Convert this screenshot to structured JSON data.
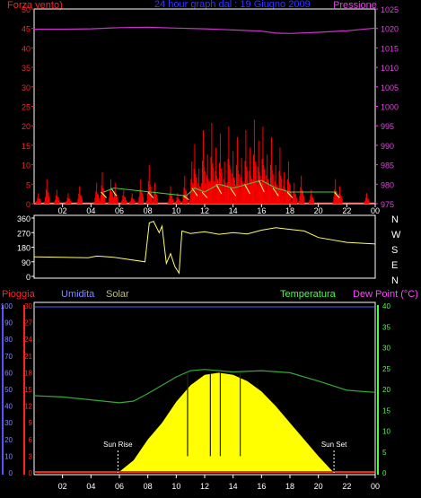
{
  "header": {
    "left_label": "Forza vento)",
    "center_label": "24 hour graph dal : 19 Giugno 2009",
    "right_label": "Pressione"
  },
  "hour_ticks": [
    "02",
    "04",
    "06",
    "08",
    "10",
    "12",
    "14",
    "16",
    "18",
    "20",
    "22",
    "00"
  ],
  "colors": {
    "background": "#000000",
    "frame": "#ffffff",
    "wind": "#ff0000",
    "gust": "#ffff66",
    "wind_avg": "#44cc44",
    "pressure": "#cc33cc",
    "direction": "#ffff66",
    "solar": "#ffff00",
    "humidity": "#5555ff",
    "temperature": "#33aa33",
    "dewpoint": "#ff2200",
    "rain": "#ff0000",
    "text_white": "#ffffff",
    "humidity_label": "#8888ff",
    "solar_label": "#bbbb88",
    "temperature_label": "#44ff44",
    "dewpoint_label": "#ff44ff",
    "rain_label": "#ff2222"
  },
  "chart_data": [
    {
      "type": "bar",
      "title": "24 hour graph dal : 19 Giugno 2009",
      "left_axis_label": "Forza vento)",
      "right_axis_label": "Pressione",
      "left_ticks": [
        0,
        5,
        10,
        15,
        20,
        25,
        30,
        35,
        40,
        45,
        50
      ],
      "right_ticks": [
        975,
        980,
        985,
        990,
        995,
        1000,
        1005,
        1010,
        1015,
        1020,
        1025
      ],
      "ylim_left": [
        0,
        50
      ],
      "ylim_right": [
        975,
        1025
      ],
      "xlim_hours": [
        0,
        24
      ],
      "wind_bursts": [
        {
          "hour": 0.3,
          "value": 3
        },
        {
          "hour": 0.9,
          "value": 7
        },
        {
          "hour": 1.6,
          "value": 4
        },
        {
          "hour": 2.4,
          "value": 3
        },
        {
          "hour": 3.2,
          "value": 5
        },
        {
          "hour": 4.4,
          "value": 6
        },
        {
          "hour": 4.8,
          "value": 9
        },
        {
          "hour": 5.4,
          "value": 7
        },
        {
          "hour": 5.7,
          "value": 6
        },
        {
          "hour": 6.3,
          "value": 4
        },
        {
          "hour": 6.9,
          "value": 3
        },
        {
          "hour": 7.5,
          "value": 7
        },
        {
          "hour": 8.1,
          "value": 11
        },
        {
          "hour": 8.5,
          "value": 6
        },
        {
          "hour": 9.6,
          "value": 5
        },
        {
          "hour": 10.1,
          "value": 3
        },
        {
          "hour": 10.6,
          "value": 8
        },
        {
          "hour": 11.1,
          "value": 12
        },
        {
          "hour": 11.3,
          "value": 17
        },
        {
          "hour": 11.6,
          "value": 10
        },
        {
          "hour": 11.9,
          "value": 21
        },
        {
          "hour": 12.2,
          "value": 14
        },
        {
          "hour": 12.5,
          "value": 23
        },
        {
          "hour": 12.8,
          "value": 16
        },
        {
          "hour": 13.1,
          "value": 20
        },
        {
          "hour": 13.4,
          "value": 12
        },
        {
          "hour": 13.7,
          "value": 22
        },
        {
          "hour": 14.0,
          "value": 15
        },
        {
          "hour": 14.3,
          "value": 19
        },
        {
          "hour": 14.6,
          "value": 13
        },
        {
          "hour": 14.9,
          "value": 21
        },
        {
          "hour": 15.2,
          "value": 16
        },
        {
          "hour": 15.5,
          "value": 24
        },
        {
          "hour": 15.8,
          "value": 18
        },
        {
          "hour": 16.1,
          "value": 22
        },
        {
          "hour": 16.4,
          "value": 14
        },
        {
          "hour": 16.7,
          "value": 19
        },
        {
          "hour": 17.0,
          "value": 11
        },
        {
          "hour": 17.3,
          "value": 16
        },
        {
          "hour": 17.6,
          "value": 9
        },
        {
          "hour": 17.9,
          "value": 12
        },
        {
          "hour": 18.3,
          "value": 6
        },
        {
          "hour": 18.8,
          "value": 8
        },
        {
          "hour": 19.5,
          "value": 4
        },
        {
          "hour": 21.2,
          "value": 7
        },
        {
          "hour": 21.5,
          "value": 5
        },
        {
          "hour": 23.4,
          "value": 3
        }
      ],
      "wind_avg": [
        {
          "hour": 4.9,
          "value": 3
        },
        {
          "hour": 5.6,
          "value": 4
        },
        {
          "hour": 8.2,
          "value": 3
        },
        {
          "hour": 10.7,
          "value": 2
        },
        {
          "hour": 11.3,
          "value": 4
        },
        {
          "hour": 12.0,
          "value": 3
        },
        {
          "hour": 13.0,
          "value": 5
        },
        {
          "hour": 14.0,
          "value": 4
        },
        {
          "hour": 15.0,
          "value": 5
        },
        {
          "hour": 16.0,
          "value": 6
        },
        {
          "hour": 17.0,
          "value": 4
        },
        {
          "hour": 18.0,
          "value": 3
        },
        {
          "hour": 21.3,
          "value": 3
        }
      ],
      "pressure": [
        {
          "hour": 0,
          "value": 1019.8
        },
        {
          "hour": 2,
          "value": 1019.8
        },
        {
          "hour": 4,
          "value": 1019.9
        },
        {
          "hour": 6,
          "value": 1020.2
        },
        {
          "hour": 8,
          "value": 1020.3
        },
        {
          "hour": 10,
          "value": 1020.1
        },
        {
          "hour": 12,
          "value": 1019.9
        },
        {
          "hour": 14,
          "value": 1019.6
        },
        {
          "hour": 16,
          "value": 1019.3
        },
        {
          "hour": 17,
          "value": 1018.8
        },
        {
          "hour": 18,
          "value": 1018.7
        },
        {
          "hour": 20,
          "value": 1019.0
        },
        {
          "hour": 22,
          "value": 1019.4
        },
        {
          "hour": 24,
          "value": 1020.1
        }
      ]
    },
    {
      "type": "line",
      "left_ticks": [
        0,
        90,
        180,
        270,
        360
      ],
      "right_labels": [
        "N",
        "W",
        "S",
        "E",
        "N"
      ],
      "ylim": [
        0,
        360
      ],
      "direction": [
        {
          "hour": 0,
          "value": 120
        },
        {
          "hour": 2,
          "value": 118
        },
        {
          "hour": 3.8,
          "value": 115
        },
        {
          "hour": 4.4,
          "value": 125
        },
        {
          "hour": 5.0,
          "value": 122
        },
        {
          "hour": 5.6,
          "value": 118
        },
        {
          "hour": 7.8,
          "value": 90
        },
        {
          "hour": 8.1,
          "value": 330
        },
        {
          "hour": 8.4,
          "value": 340
        },
        {
          "hour": 8.8,
          "value": 270
        },
        {
          "hour": 9.0,
          "value": 310
        },
        {
          "hour": 9.3,
          "value": 80
        },
        {
          "hour": 9.6,
          "value": 140
        },
        {
          "hour": 9.9,
          "value": 60
        },
        {
          "hour": 10.2,
          "value": 20
        },
        {
          "hour": 10.4,
          "value": 280
        },
        {
          "hour": 11,
          "value": 265
        },
        {
          "hour": 12,
          "value": 275
        },
        {
          "hour": 13,
          "value": 260
        },
        {
          "hour": 14,
          "value": 270
        },
        {
          "hour": 15,
          "value": 262
        },
        {
          "hour": 16,
          "value": 285
        },
        {
          "hour": 17,
          "value": 300
        },
        {
          "hour": 18,
          "value": 290
        },
        {
          "hour": 19,
          "value": 280
        },
        {
          "hour": 20,
          "value": 240
        },
        {
          "hour": 22,
          "value": 210
        },
        {
          "hour": 24,
          "value": 200
        }
      ]
    },
    {
      "type": "area",
      "labels": {
        "rain": "Pioggia",
        "humidity": "Umidita",
        "solar": "Solar",
        "temperature": "Temperatura",
        "dewpoint": "Dew Point (°C)"
      },
      "left_outer_ticks": [
        0,
        10,
        20,
        30,
        40,
        50,
        60,
        70,
        80,
        90,
        100
      ],
      "left_inner_ticks": [
        0,
        3,
        6,
        9,
        12,
        15,
        18,
        21,
        24,
        27,
        30
      ],
      "right_ticks": [
        0,
        5,
        10,
        15,
        20,
        25,
        30,
        35,
        40
      ],
      "ylim_temperature": [
        0,
        40
      ],
      "annotations": [
        {
          "text": "Sun Rise",
          "hour": 5.9
        },
        {
          "text": "Sun Set",
          "hour": 21.1
        }
      ],
      "solar": [
        {
          "hour": 5.9,
          "value": 0
        },
        {
          "hour": 7,
          "value": 3
        },
        {
          "hour": 8,
          "value": 8
        },
        {
          "hour": 9,
          "value": 12
        },
        {
          "hour": 10,
          "value": 17
        },
        {
          "hour": 11,
          "value": 21
        },
        {
          "hour": 12,
          "value": 23.5
        },
        {
          "hour": 13,
          "value": 24
        },
        {
          "hour": 14,
          "value": 23.5
        },
        {
          "hour": 15,
          "value": 22
        },
        {
          "hour": 16,
          "value": 19.5
        },
        {
          "hour": 17,
          "value": 16
        },
        {
          "hour": 18,
          "value": 12
        },
        {
          "hour": 19,
          "value": 8
        },
        {
          "hour": 20,
          "value": 4
        },
        {
          "hour": 21.1,
          "value": 0
        }
      ],
      "solar_dips": [
        10.8,
        12.4,
        13.1,
        14.5
      ],
      "temperature": [
        {
          "hour": 0,
          "value": 18.5
        },
        {
          "hour": 2,
          "value": 18.2
        },
        {
          "hour": 4,
          "value": 17.5
        },
        {
          "hour": 6,
          "value": 16.8
        },
        {
          "hour": 7,
          "value": 17.2
        },
        {
          "hour": 8,
          "value": 19.0
        },
        {
          "hour": 9,
          "value": 21.0
        },
        {
          "hour": 10,
          "value": 23.0
        },
        {
          "hour": 11,
          "value": 24.5
        },
        {
          "hour": 12,
          "value": 24.8
        },
        {
          "hour": 13,
          "value": 24.5
        },
        {
          "hour": 14,
          "value": 24.2
        },
        {
          "hour": 16,
          "value": 24.5
        },
        {
          "hour": 18,
          "value": 24.0
        },
        {
          "hour": 20,
          "value": 22.0
        },
        {
          "hour": 22,
          "value": 19.8
        },
        {
          "hour": 24,
          "value": 19.3
        }
      ],
      "dewpoint": [
        {
          "hour": 0,
          "value": 0.3
        },
        {
          "hour": 24,
          "value": 0.3
        }
      ],
      "humidity": [
        {
          "hour": 0,
          "value": 100
        },
        {
          "hour": 24,
          "value": 100
        }
      ]
    }
  ]
}
